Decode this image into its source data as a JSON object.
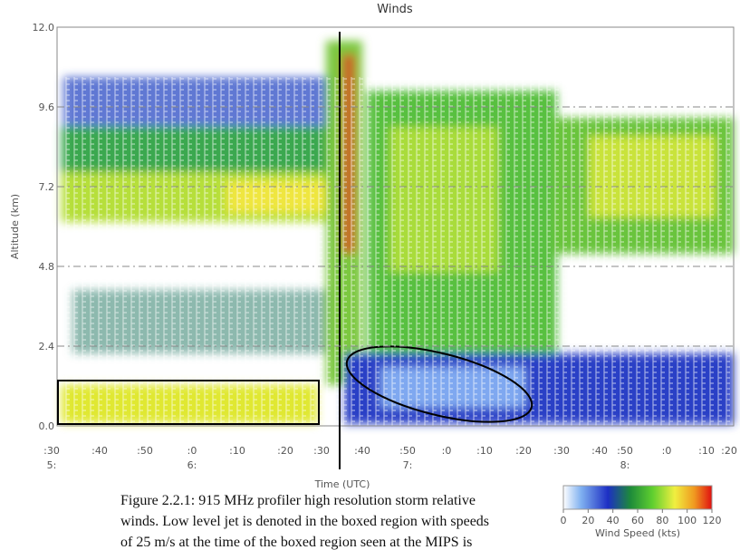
{
  "figure": {
    "title": "Winds",
    "y_axis": {
      "label": "Altitude (km)",
      "range": [
        0,
        12
      ],
      "ticks": [
        {
          "value": 0,
          "label": "0.0"
        },
        2.4,
        4.8,
        7.2,
        9.6,
        {
          "value": 12,
          "label": "12.0"
        }
      ]
    },
    "x_axis": {
      "label": "Time (UTC)",
      "ticks": [
        ":30",
        ":40",
        ":50",
        ":0",
        ":10",
        ":20",
        ":30",
        ":40",
        ":50",
        ":0",
        ":10",
        ":20",
        ":30",
        ":40",
        ":50",
        ":0",
        ":10",
        ":20"
      ],
      "hours": [
        "5:",
        "6:",
        "7:",
        "8:"
      ]
    },
    "colorbar": {
      "label": "Wind Speed (kts)",
      "range": [
        0,
        120
      ],
      "ticks": [
        0,
        20,
        40,
        60,
        80,
        100,
        120
      ]
    },
    "caption": [
      "Figure 2.2.1: 915 MHz profiler high resolution storm relative",
      "winds. Low level jet is denoted in the boxed region with speeds",
      "of 25 m/s at the time of the boxed region seen at the MIPS is"
    ]
  }
}
